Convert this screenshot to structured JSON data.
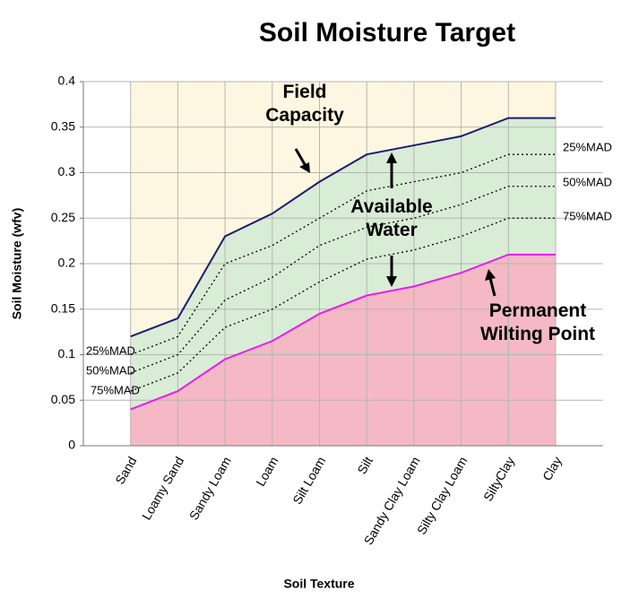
{
  "chart_data": {
    "type": "line",
    "title": "Soil Moisture Target",
    "xlabel": "Soil Texture",
    "ylabel": "Soil Moisture (wfv)",
    "categories": [
      "Sand",
      "Loamy Sand",
      "Sandy Loam",
      "Loam",
      "Silt Loam",
      "Silt",
      "Sandy Clay Loam",
      "Silty Clay Loam",
      "SiltyClay",
      "Clay"
    ],
    "series": [
      {
        "name": "Field Capacity",
        "color": "#1c1c72",
        "values": [
          0.12,
          0.14,
          0.23,
          0.255,
          0.29,
          0.32,
          0.33,
          0.34,
          0.36,
          0.36
        ]
      },
      {
        "name": "25%MAD",
        "color": "#000000",
        "values": [
          0.1,
          0.12,
          0.2,
          0.22,
          0.25,
          0.28,
          0.29,
          0.3,
          0.32,
          0.32
        ]
      },
      {
        "name": "50%MAD",
        "color": "#000000",
        "values": [
          0.08,
          0.1,
          0.16,
          0.185,
          0.22,
          0.24,
          0.25,
          0.265,
          0.285,
          0.285
        ]
      },
      {
        "name": "75%MAD",
        "color": "#000000",
        "values": [
          0.06,
          0.08,
          0.13,
          0.15,
          0.18,
          0.205,
          0.215,
          0.23,
          0.25,
          0.25
        ]
      },
      {
        "name": "Permanent Wilting Point",
        "color": "#e81ee8",
        "values": [
          0.04,
          0.06,
          0.095,
          0.115,
          0.145,
          0.165,
          0.175,
          0.19,
          0.21,
          0.21
        ]
      }
    ],
    "annotations": [
      "Available Water"
    ],
    "ylim": [
      0,
      0.4
    ],
    "yticks": [
      0,
      0.05,
      0.1,
      0.15,
      0.2,
      0.25,
      0.3,
      0.35,
      0.4
    ],
    "grid": true
  }
}
